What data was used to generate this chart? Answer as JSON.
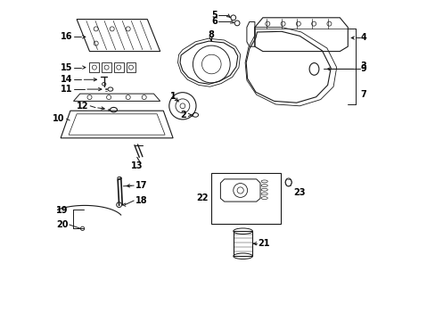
{
  "bg_color": "#ffffff",
  "line_color": "#1a1a1a",
  "label_color": "#000000",
  "fig_width": 4.89,
  "fig_height": 3.6,
  "dpi": 100,
  "font_size": 7.0
}
